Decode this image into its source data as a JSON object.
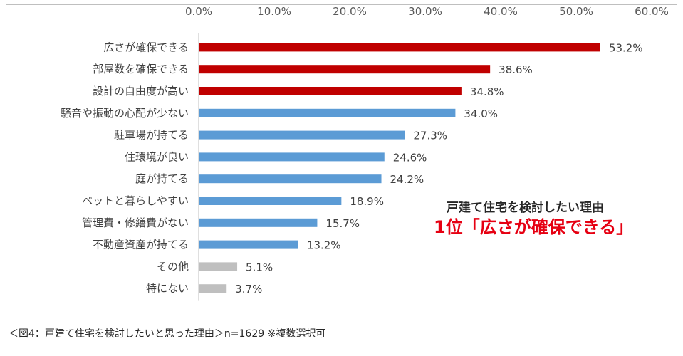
{
  "chart_data": {
    "type": "bar",
    "orientation": "horizontal",
    "categories": [
      "広さが確保できる",
      "部屋数を確保できる",
      "設計の自由度が高い",
      "騒音や振動の心配が少ない",
      "駐車場が持てる",
      "住環境が良い",
      "庭が持てる",
      "ペットと暮らしやすい",
      "管理費・修繕費がない",
      "不動産資産が持てる",
      "その他",
      "特にない"
    ],
    "values": [
      53.2,
      38.6,
      34.8,
      34.0,
      27.3,
      24.6,
      24.2,
      18.9,
      15.7,
      13.2,
      5.1,
      3.7
    ],
    "value_labels": [
      "53.2%",
      "38.6%",
      "34.8%",
      "34.0%",
      "27.3%",
      "24.6%",
      "24.2%",
      "18.9%",
      "15.7%",
      "13.2%",
      "5.1%",
      "3.7%"
    ],
    "bar_colors": [
      "#c00000",
      "#c00000",
      "#c00000",
      "#5b9bd5",
      "#5b9bd5",
      "#5b9bd5",
      "#5b9bd5",
      "#5b9bd5",
      "#5b9bd5",
      "#5b9bd5",
      "#bfbfbf",
      "#bfbfbf"
    ],
    "xlim": [
      0,
      60
    ],
    "x_ticks": [
      0,
      10,
      20,
      30,
      40,
      50,
      60
    ],
    "x_tick_labels": [
      "0.0%",
      "10.0%",
      "20.0%",
      "30.0%",
      "40.0%",
      "50.0%",
      "60.0%"
    ],
    "x_axis_position": "top",
    "grid": false,
    "legend": "none"
  },
  "annotation": {
    "line1": "戸建て住宅を検討したい理由",
    "line2": "1位「広さが確保できる」"
  },
  "caption": "＜図4：戸建て住宅を検討したいと思った理由＞n=1629 ※複数選択可"
}
